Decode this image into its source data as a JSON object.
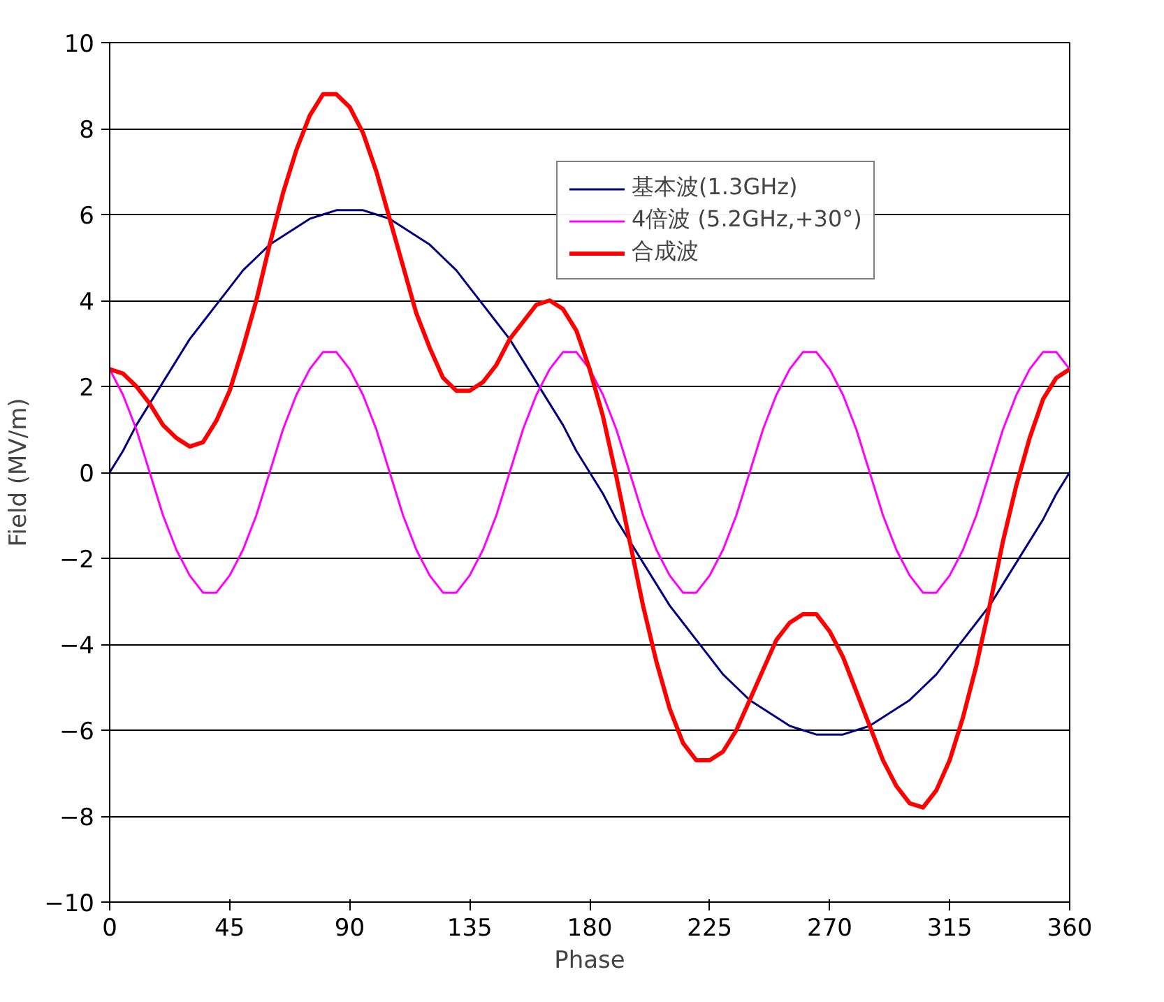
{
  "chart_data": {
    "type": "line",
    "xlabel": "Phase",
    "ylabel": "Field (MV/m)",
    "x": [
      0,
      5,
      10,
      15,
      20,
      25,
      30,
      35,
      40,
      45,
      50,
      55,
      60,
      65,
      70,
      75,
      80,
      85,
      90,
      95,
      100,
      105,
      110,
      115,
      120,
      125,
      130,
      135,
      140,
      145,
      150,
      155,
      160,
      165,
      170,
      175,
      180,
      185,
      190,
      195,
      200,
      205,
      210,
      215,
      220,
      225,
      230,
      235,
      240,
      245,
      250,
      255,
      260,
      265,
      270,
      275,
      280,
      285,
      290,
      295,
      300,
      305,
      310,
      315,
      320,
      325,
      330,
      335,
      340,
      345,
      350,
      355,
      360
    ],
    "xlim": [
      0,
      360
    ],
    "xticks": [
      0,
      45,
      90,
      135,
      180,
      225,
      270,
      315,
      360
    ],
    "ylim": [
      -10,
      10
    ],
    "yticks": [
      -10,
      -8,
      -6,
      -4,
      -2,
      0,
      2,
      4,
      6,
      8,
      10
    ],
    "grid": "y",
    "legend": "top right",
    "marker": "none",
    "line_style": "solid",
    "series": [
      {
        "name": "基本波(1.3GHz)",
        "color": "#000080",
        "values": [
          0,
          0.5,
          1.1,
          1.6,
          2.1,
          2.6,
          3.1,
          3.5,
          3.9,
          4.3,
          4.7,
          5.0,
          5.3,
          5.5,
          5.7,
          5.9,
          6.0,
          6.1,
          6.1,
          6.1,
          6.0,
          5.9,
          5.7,
          5.5,
          5.3,
          5.0,
          4.7,
          4.3,
          3.9,
          3.5,
          3.1,
          2.6,
          2.1,
          1.6,
          1.1,
          0.5,
          0,
          -0.5,
          -1.1,
          -1.6,
          -2.1,
          -2.6,
          -3.1,
          -3.5,
          -3.9,
          -4.3,
          -4.7,
          -5.0,
          -5.3,
          -5.5,
          -5.7,
          -5.9,
          -6.0,
          -6.1,
          -6.1,
          -6.1,
          -6.0,
          -5.9,
          -5.7,
          -5.5,
          -5.3,
          -5.0,
          -4.7,
          -4.3,
          -3.9,
          -3.5,
          -3.1,
          -2.6,
          -2.1,
          -1.6,
          -1.1,
          -0.5,
          0
        ]
      },
      {
        "name": "4倍波 (5.2GHz,+30°)",
        "color": "#ff00ff",
        "values": [
          2.4,
          1.8,
          1.0,
          0,
          -1.0,
          -1.8,
          -2.4,
          -2.8,
          -2.8,
          -2.4,
          -1.8,
          -1.0,
          0,
          1.0,
          1.8,
          2.4,
          2.8,
          2.8,
          2.4,
          1.8,
          1.0,
          0,
          -1.0,
          -1.8,
          -2.4,
          -2.8,
          -2.8,
          -2.4,
          -1.8,
          -1.0,
          0,
          1.0,
          1.8,
          2.4,
          2.8,
          2.8,
          2.4,
          1.8,
          1.0,
          0,
          -1.0,
          -1.8,
          -2.4,
          -2.8,
          -2.8,
          -2.4,
          -1.8,
          -1.0,
          0,
          1.0,
          1.8,
          2.4,
          2.8,
          2.8,
          2.4,
          1.8,
          1.0,
          0,
          -1.0,
          -1.8,
          -2.4,
          -2.8,
          -2.8,
          -2.4,
          -1.8,
          -1.0,
          0,
          1.0,
          1.8,
          2.4,
          2.8,
          2.8,
          2.4
        ]
      },
      {
        "name": "合成波",
        "color": "#ff0000",
        "values": [
          2.4,
          2.3,
          2.0,
          1.6,
          1.1,
          0.8,
          0.6,
          0.7,
          1.2,
          1.9,
          2.9,
          4.0,
          5.3,
          6.5,
          7.5,
          8.3,
          8.8,
          8.8,
          8.5,
          7.9,
          7.0,
          5.9,
          4.8,
          3.7,
          2.9,
          2.2,
          1.9,
          1.9,
          2.1,
          2.5,
          3.1,
          3.5,
          3.9,
          4.0,
          3.8,
          3.3,
          2.4,
          1.3,
          -0.1,
          -1.6,
          -3.1,
          -4.4,
          -5.5,
          -6.3,
          -6.7,
          -6.7,
          -6.5,
          -6.0,
          -5.3,
          -4.6,
          -3.9,
          -3.5,
          -3.3,
          -3.3,
          -3.7,
          -4.3,
          -5.1,
          -5.9,
          -6.7,
          -7.3,
          -7.7,
          -7.8,
          -7.4,
          -6.7,
          -5.7,
          -4.5,
          -3.1,
          -1.6,
          -0.3,
          0.8,
          1.7,
          2.2,
          2.4
        ]
      }
    ]
  }
}
